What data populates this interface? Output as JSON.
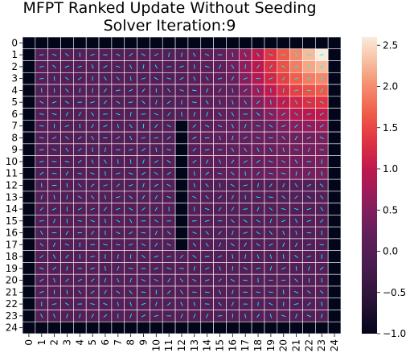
{
  "chart_data": {
    "type": "heatmap",
    "title_lines": [
      "MFPT Ranked Update Without Seeding",
      "Solver Iteration:9"
    ],
    "xlabel": "",
    "ylabel": "",
    "x_tick_labels": [
      "0",
      "1",
      "2",
      "3",
      "4",
      "5",
      "6",
      "7",
      "8",
      "9",
      "10",
      "11",
      "12",
      "13",
      "14",
      "15",
      "16",
      "17",
      "18",
      "19",
      "20",
      "21",
      "22",
      "23",
      "24"
    ],
    "y_tick_labels": [
      "0",
      "1",
      "2",
      "3",
      "4",
      "5",
      "6",
      "7",
      "8",
      "9",
      "10",
      "11",
      "12",
      "13",
      "14",
      "15",
      "16",
      "17",
      "18",
      "19",
      "20",
      "21",
      "22",
      "23",
      "24"
    ],
    "grid": true,
    "colorbar": {
      "label": "",
      "vmin": -1.0,
      "vmax": 2.6,
      "ticks": [
        -1.0,
        -0.5,
        0.0,
        0.5,
        1.0,
        1.5,
        2.0,
        2.5
      ],
      "tick_labels": [
        "−1.0",
        "−0.5",
        "0.0",
        "0.5",
        "1.0",
        "1.5",
        "2.0",
        "2.5"
      ],
      "position": "right",
      "colormap": "rocket"
    },
    "border_value": -1.0,
    "wall": {
      "column": 12,
      "rows": [
        7,
        17
      ],
      "value": -1.0
    },
    "background_value": 0.05,
    "hot_region": {
      "columns": [
        16,
        23
      ],
      "rows": [
        1,
        8
      ],
      "peak_row": 1,
      "peak_column": 23,
      "peak_value": 2.6
    },
    "quiver": {
      "present": true,
      "color": "#00ffff"
    }
  }
}
